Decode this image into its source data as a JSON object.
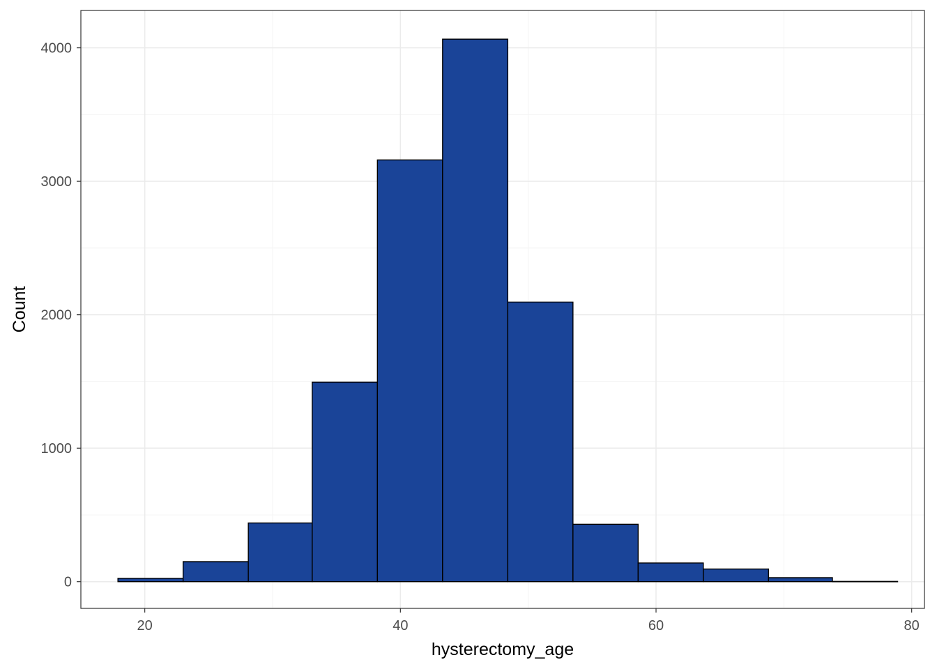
{
  "chart_data": {
    "type": "bar",
    "subtype": "histogram",
    "xlabel": "hysterectomy_age",
    "ylabel": "Count",
    "xlim": [
      15,
      81
    ],
    "ylim": [
      -200,
      4280
    ],
    "x_ticks": [
      20,
      40,
      60,
      80
    ],
    "y_ticks": [
      0,
      1000,
      2000,
      3000,
      4000
    ],
    "grid": true,
    "bins": [
      {
        "x0": 17.9,
        "x1": 23.0,
        "count": 25
      },
      {
        "x0": 23.0,
        "x1": 28.1,
        "count": 150
      },
      {
        "x0": 28.1,
        "x1": 33.1,
        "count": 440
      },
      {
        "x0": 33.1,
        "x1": 38.2,
        "count": 1495
      },
      {
        "x0": 38.2,
        "x1": 43.3,
        "count": 3160
      },
      {
        "x0": 43.3,
        "x1": 48.4,
        "count": 4065
      },
      {
        "x0": 48.4,
        "x1": 53.5,
        "count": 2095
      },
      {
        "x0": 53.5,
        "x1": 58.6,
        "count": 430
      },
      {
        "x0": 58.6,
        "x1": 63.7,
        "count": 140
      },
      {
        "x0": 63.7,
        "x1": 68.8,
        "count": 95
      },
      {
        "x0": 68.8,
        "x1": 73.8,
        "count": 30
      },
      {
        "x0": 73.8,
        "x1": 78.9,
        "count": 2
      }
    ],
    "colors": {
      "bar_fill": "#1a4498",
      "bar_stroke": "#000000",
      "grid_major": "#ebebeb",
      "grid_minor": "#f4f4f4",
      "panel_border": "#333333",
      "tick_text": "#4d4d4d"
    }
  }
}
